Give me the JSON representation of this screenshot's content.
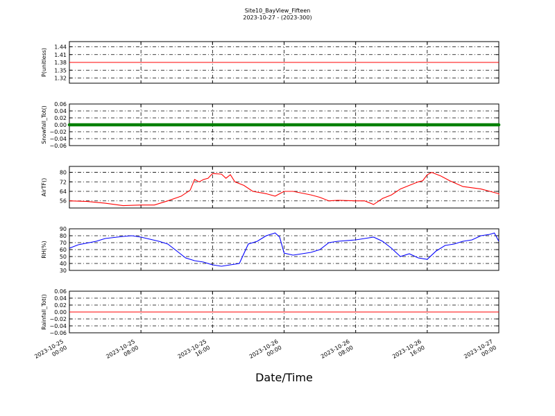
{
  "title": "Site10_BayView_Fifteen",
  "subtitle": "2023-10-27 - (2023-300)",
  "chart_data": {
    "type": "line",
    "xlabel": "Date/Time",
    "xlim": [
      "2023-10-25 00:00",
      "2023-10-27 00:00"
    ],
    "x_ticks": [
      {
        "time": "2023-10-25 00:00",
        "line1": "2023-10-25",
        "line2": "00:00"
      },
      {
        "time": "2023-10-25 08:00",
        "line1": "2023-10-25",
        "line2": "08:00"
      },
      {
        "time": "2023-10-25 16:00",
        "line1": "2023-10-25",
        "line2": "16:00"
      },
      {
        "time": "2023-10-26 00:00",
        "line1": "2023-10-26",
        "line2": "00:00"
      },
      {
        "time": "2023-10-26 08:00",
        "line1": "2023-10-26",
        "line2": "08:00"
      },
      {
        "time": "2023-10-26 16:00",
        "line1": "2023-10-26",
        "line2": "16:00"
      },
      {
        "time": "2023-10-27 00:00",
        "line1": "2023-10-27",
        "line2": "00:00"
      }
    ],
    "grid": true,
    "panels": [
      {
        "ylabel": "P(unitless)",
        "ylim": [
          1.3,
          1.46
        ],
        "yticks": [
          "1.32",
          "1.35",
          "1.38",
          "1.41",
          "1.44"
        ],
        "style": "line",
        "color": "#ff0000",
        "points": [
          [
            "2023-10-25 00:00",
            1.38
          ],
          [
            "2023-10-27 00:00",
            1.38
          ]
        ]
      },
      {
        "ylabel": "Snowfall_Tot()",
        "ylim": [
          -0.06,
          0.06
        ],
        "yticks": [
          "−0.06",
          "−0.04",
          "−0.02",
          "0.00",
          "0.02",
          "0.04",
          "0.06"
        ],
        "style": "markers",
        "color": "#008000",
        "points": [
          [
            "2023-10-25 00:00",
            0.0
          ],
          [
            "2023-10-27 00:00",
            0.0
          ]
        ]
      },
      {
        "ylabel": "AirTF()",
        "ylim": [
          50,
          85
        ],
        "yticks": [
          "56",
          "64",
          "72",
          "80"
        ],
        "style": "line",
        "color": "#ff0000",
        "points": [
          [
            "2023-10-25 00:00",
            56
          ],
          [
            "2023-10-25 02:00",
            55.5
          ],
          [
            "2023-10-25 04:00",
            54
          ],
          [
            "2023-10-25 06:00",
            52
          ],
          [
            "2023-10-25 08:00",
            52.5
          ],
          [
            "2023-10-25 09:30",
            52.5
          ],
          [
            "2023-10-25 11:00",
            56
          ],
          [
            "2023-10-25 12:30",
            60
          ],
          [
            "2023-10-25 13:30",
            65
          ],
          [
            "2023-10-25 14:00",
            74
          ],
          [
            "2023-10-25 14:30",
            72
          ],
          [
            "2023-10-25 15:00",
            74
          ],
          [
            "2023-10-25 15:30",
            75
          ],
          [
            "2023-10-25 16:00",
            79
          ],
          [
            "2023-10-25 17:00",
            78.5
          ],
          [
            "2023-10-25 17:30",
            75
          ],
          [
            "2023-10-25 18:00",
            78
          ],
          [
            "2023-10-25 18:30",
            72
          ],
          [
            "2023-10-25 19:30",
            69
          ],
          [
            "2023-10-25 20:30",
            64
          ],
          [
            "2023-10-25 22:00",
            62
          ],
          [
            "2023-10-25 23:00",
            60
          ],
          [
            "2023-10-26 00:00",
            64
          ],
          [
            "2023-10-26 01:00",
            64
          ],
          [
            "2023-10-26 03:00",
            61
          ],
          [
            "2023-10-26 04:00",
            59
          ],
          [
            "2023-10-26 05:00",
            56
          ],
          [
            "2023-10-26 06:00",
            56.5
          ],
          [
            "2023-10-26 08:00",
            56
          ],
          [
            "2023-10-26 09:00",
            56
          ],
          [
            "2023-10-26 10:00",
            53
          ],
          [
            "2023-10-26 11:00",
            58
          ],
          [
            "2023-10-26 12:00",
            61
          ],
          [
            "2023-10-26 13:00",
            66
          ],
          [
            "2023-10-26 14:00",
            69
          ],
          [
            "2023-10-26 15:00",
            72
          ],
          [
            "2023-10-26 15:30",
            73
          ],
          [
            "2023-10-26 16:00",
            78
          ],
          [
            "2023-10-26 16:30",
            80
          ],
          [
            "2023-10-26 17:30",
            77
          ],
          [
            "2023-10-26 18:30",
            73
          ],
          [
            "2023-10-26 20:00",
            68
          ],
          [
            "2023-10-26 22:00",
            66
          ],
          [
            "2023-10-27 00:00",
            62
          ],
          [
            "2023-10-27 00:00",
            61
          ]
        ]
      },
      {
        "ylabel": "RH(%)",
        "ylim": [
          30,
          90
        ],
        "yticks": [
          "30",
          "40",
          "50",
          "60",
          "70",
          "80",
          "90"
        ],
        "style": "line",
        "color": "#0000ff",
        "points": [
          [
            "2023-10-25 00:00",
            62
          ],
          [
            "2023-10-25 01:00",
            67
          ],
          [
            "2023-10-25 03:00",
            72
          ],
          [
            "2023-10-25 04:00",
            76
          ],
          [
            "2023-10-25 06:00",
            79
          ],
          [
            "2023-10-25 07:00",
            80
          ],
          [
            "2023-10-25 08:00",
            78
          ],
          [
            "2023-10-25 09:00",
            75
          ],
          [
            "2023-10-25 10:00",
            72
          ],
          [
            "2023-10-25 11:00",
            68
          ],
          [
            "2023-10-25 12:00",
            58
          ],
          [
            "2023-10-25 13:00",
            48
          ],
          [
            "2023-10-25 14:00",
            44
          ],
          [
            "2023-10-25 15:00",
            42
          ],
          [
            "2023-10-25 16:00",
            38
          ],
          [
            "2023-10-25 17:00",
            36
          ],
          [
            "2023-10-25 18:00",
            38
          ],
          [
            "2023-10-25 19:00",
            40
          ],
          [
            "2023-10-25 20:00",
            68
          ],
          [
            "2023-10-25 21:00",
            72
          ],
          [
            "2023-10-25 22:00",
            80
          ],
          [
            "2023-10-25 23:00",
            84
          ],
          [
            "2023-10-25 23:30",
            78
          ],
          [
            "2023-10-26 00:00",
            55
          ],
          [
            "2023-10-26 01:00",
            52
          ],
          [
            "2023-10-26 02:00",
            54
          ],
          [
            "2023-10-26 03:00",
            56
          ],
          [
            "2023-10-26 04:00",
            60
          ],
          [
            "2023-10-26 05:00",
            70
          ],
          [
            "2023-10-26 06:00",
            72
          ],
          [
            "2023-10-26 08:00",
            74
          ],
          [
            "2023-10-26 09:00",
            76
          ],
          [
            "2023-10-26 10:00",
            78
          ],
          [
            "2023-10-26 11:00",
            72
          ],
          [
            "2023-10-26 12:00",
            62
          ],
          [
            "2023-10-26 13:00",
            50
          ],
          [
            "2023-10-26 14:00",
            54
          ],
          [
            "2023-10-26 15:00",
            48
          ],
          [
            "2023-10-26 16:00",
            46
          ],
          [
            "2023-10-26 17:00",
            58
          ],
          [
            "2023-10-26 18:00",
            66
          ],
          [
            "2023-10-26 19:00",
            68
          ],
          [
            "2023-10-26 20:00",
            72
          ],
          [
            "2023-10-26 21:00",
            74
          ],
          [
            "2023-10-26 22:00",
            80
          ],
          [
            "2023-10-26 23:00",
            82
          ],
          [
            "2023-10-26 23:30",
            84
          ],
          [
            "2023-10-27 00:00",
            72
          ]
        ]
      },
      {
        "ylabel": "Rainfall_Tot()",
        "ylim": [
          -0.06,
          0.06
        ],
        "yticks": [
          "−0.06",
          "−0.04",
          "−0.02",
          "0.00",
          "0.02",
          "0.04",
          "0.06"
        ],
        "style": "line",
        "color": "#ff0000",
        "points": [
          [
            "2023-10-25 00:00",
            0.0
          ],
          [
            "2023-10-27 00:00",
            0.0
          ]
        ]
      }
    ]
  }
}
